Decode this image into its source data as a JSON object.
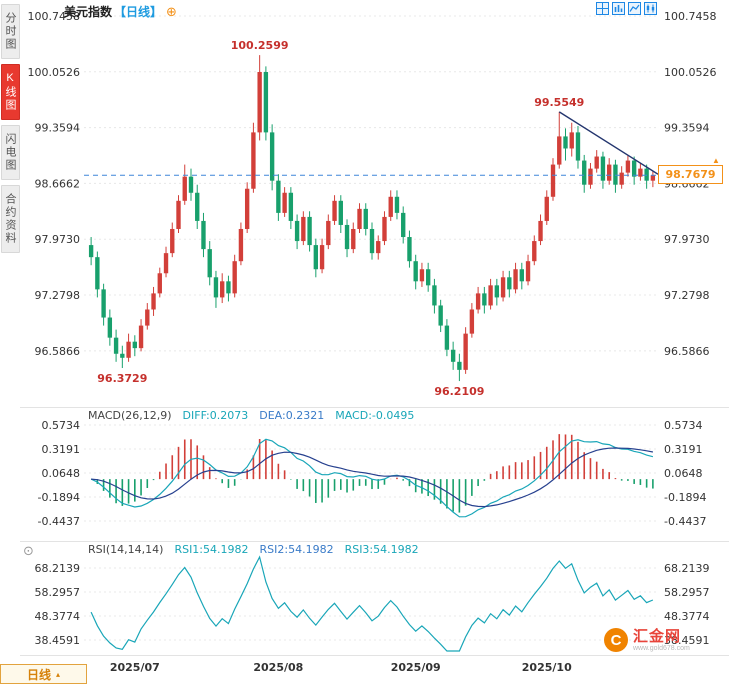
{
  "header": {
    "title": "美元指数",
    "period": "【日线】"
  },
  "sidebar": {
    "tabs": [
      {
        "label": "分时图",
        "active": false
      },
      {
        "label": "K线图",
        "active": true
      },
      {
        "label": "闪电图",
        "active": false
      },
      {
        "label": "合约资料",
        "active": false
      }
    ]
  },
  "main_chart": {
    "y_labels": [
      "100.7458",
      "100.0526",
      "99.3594",
      "98.6662",
      "97.9730",
      "97.2798",
      "96.5866"
    ],
    "current_price": "98.7679",
    "annotations": [
      {
        "text": "100.2599",
        "index": 27,
        "value": 100.2599,
        "pos": "above"
      },
      {
        "text": "96.3729",
        "index": 5,
        "value": 96.3729,
        "pos": "below"
      },
      {
        "text": "99.5549",
        "index": 75,
        "value": 99.5549,
        "pos": "above"
      },
      {
        "text": "96.2109",
        "index": 59,
        "value": 96.2109,
        "pos": "below"
      }
    ],
    "trendline": {
      "from_index": 75,
      "from_value": 99.5549,
      "to_value": 98.78
    }
  },
  "macd": {
    "title": "MACD(26,12,9)",
    "diff": "DIFF:0.2073",
    "dea": "DEA:0.2321",
    "macd": "MACD:-0.0495",
    "y_labels": [
      "0.5734",
      "0.3191",
      "0.0648",
      "-0.1894",
      "-0.4437"
    ]
  },
  "rsi": {
    "title": "RSI(14,14,14)",
    "rsi1": "RSI1:54.1982",
    "rsi2": "RSI2:54.1982",
    "rsi3": "RSI3:54.1982",
    "y_labels": [
      "68.2139",
      "58.2957",
      "48.3774",
      "38.4591"
    ]
  },
  "bottom": {
    "period_tab": "日线",
    "x_labels": [
      {
        "text": "2025/07",
        "index": 7.5
      },
      {
        "text": "2025/08",
        "index": 30.5
      },
      {
        "text": "2025/09",
        "index": 52.5
      },
      {
        "text": "2025/10",
        "index": 73.5
      }
    ]
  },
  "watermark": {
    "name": "汇金网",
    "site": "www.gold678.com",
    "logo_letter": "C"
  },
  "colors": {
    "up": "#d23f39",
    "down": "#18a06c",
    "diff_line": "#19a6b8",
    "dea_line": "#27418f",
    "rsi_line": "#19a6b8",
    "dashed_line": "#3f86d9",
    "trend": "#23356e",
    "annotation": "#c5302c",
    "price_box": "#f39119",
    "accent_blue": "#1e88e5",
    "tab_active": "#e8392f",
    "period_orange": "#d6820a"
  },
  "chart_data": [
    {
      "type": "candlestick",
      "title": "美元指数 日线",
      "y_max": 100.7458,
      "y_ticks": [
        100.7458,
        100.0526,
        99.3594,
        98.6662,
        97.973,
        97.2798,
        96.5866
      ],
      "x_tick_labels": [
        "2025/07",
        "2025/08",
        "2025/09",
        "2025/10"
      ],
      "key_points": {
        "aug_high": 100.2599,
        "jul_low": 96.3729,
        "oct_high": 99.5549,
        "sep_low": 96.2109,
        "last_close": 98.7679
      },
      "ohlc": [
        [
          97.9,
          98.0,
          97.65,
          97.75
        ],
        [
          97.75,
          97.82,
          97.25,
          97.35
        ],
        [
          97.35,
          97.42,
          96.9,
          97.0
        ],
        [
          97.0,
          97.1,
          96.65,
          96.75
        ],
        [
          96.75,
          96.85,
          96.45,
          96.55
        ],
        [
          96.55,
          96.65,
          96.3729,
          96.5
        ],
        [
          96.5,
          96.8,
          96.45,
          96.7
        ],
        [
          96.7,
          96.78,
          96.52,
          96.62
        ],
        [
          96.62,
          96.98,
          96.58,
          96.9
        ],
        [
          96.9,
          97.18,
          96.85,
          97.1
        ],
        [
          97.1,
          97.38,
          97.02,
          97.3
        ],
        [
          97.3,
          97.62,
          97.25,
          97.55
        ],
        [
          97.55,
          97.88,
          97.5,
          97.8
        ],
        [
          97.8,
          98.18,
          97.75,
          98.1
        ],
        [
          98.1,
          98.52,
          98.05,
          98.45
        ],
        [
          98.45,
          98.9,
          98.4,
          98.75
        ],
        [
          98.75,
          98.85,
          98.45,
          98.55
        ],
        [
          98.55,
          98.65,
          98.1,
          98.2
        ],
        [
          98.2,
          98.3,
          97.75,
          97.85
        ],
        [
          97.85,
          97.95,
          97.4,
          97.5
        ],
        [
          97.5,
          97.58,
          97.12,
          97.25
        ],
        [
          97.25,
          97.55,
          97.18,
          97.45
        ],
        [
          97.45,
          97.52,
          97.2,
          97.3
        ],
        [
          97.3,
          97.78,
          97.25,
          97.7
        ],
        [
          97.7,
          98.18,
          97.65,
          98.1
        ],
        [
          98.1,
          98.68,
          98.05,
          98.6
        ],
        [
          98.6,
          99.42,
          98.55,
          99.3
        ],
        [
          99.3,
          100.2599,
          99.2,
          100.05
        ],
        [
          100.05,
          100.12,
          99.2,
          99.3
        ],
        [
          99.3,
          99.4,
          98.58,
          98.7
        ],
        [
          98.7,
          98.78,
          98.2,
          98.3
        ],
        [
          98.3,
          98.62,
          98.25,
          98.55
        ],
        [
          98.55,
          98.62,
          98.1,
          98.2
        ],
        [
          98.2,
          98.28,
          97.85,
          97.95
        ],
        [
          97.95,
          98.32,
          97.9,
          98.25
        ],
        [
          98.25,
          98.32,
          97.82,
          97.9
        ],
        [
          97.9,
          97.98,
          97.5,
          97.6
        ],
        [
          97.6,
          97.98,
          97.55,
          97.9
        ],
        [
          97.9,
          98.28,
          97.85,
          98.2
        ],
        [
          98.2,
          98.52,
          98.15,
          98.45
        ],
        [
          98.45,
          98.52,
          98.05,
          98.15
        ],
        [
          98.15,
          98.22,
          97.75,
          97.85
        ],
        [
          97.85,
          98.18,
          97.8,
          98.1
        ],
        [
          98.1,
          98.42,
          98.05,
          98.35
        ],
        [
          98.35,
          98.42,
          98.02,
          98.1
        ],
        [
          98.1,
          98.18,
          97.72,
          97.8
        ],
        [
          97.8,
          98.02,
          97.72,
          97.95
        ],
        [
          97.95,
          98.32,
          97.9,
          98.25
        ],
        [
          98.25,
          98.58,
          98.2,
          98.5
        ],
        [
          98.5,
          98.58,
          98.22,
          98.3
        ],
        [
          98.3,
          98.38,
          97.92,
          98.0
        ],
        [
          98.0,
          98.08,
          97.62,
          97.7
        ],
        [
          97.7,
          97.78,
          97.35,
          97.45
        ],
        [
          97.45,
          97.68,
          97.38,
          97.6
        ],
        [
          97.6,
          97.68,
          97.32,
          97.4
        ],
        [
          97.4,
          97.48,
          97.05,
          97.15
        ],
        [
          97.15,
          97.22,
          96.82,
          96.9
        ],
        [
          96.9,
          96.98,
          96.52,
          96.6
        ],
        [
          96.6,
          96.7,
          96.35,
          96.45
        ],
        [
          96.45,
          96.55,
          96.2109,
          96.35
        ],
        [
          96.35,
          96.88,
          96.3,
          96.8
        ],
        [
          96.8,
          97.18,
          96.75,
          97.1
        ],
        [
          97.1,
          97.38,
          97.05,
          97.3
        ],
        [
          97.3,
          97.38,
          97.05,
          97.15
        ],
        [
          97.15,
          97.48,
          97.1,
          97.4
        ],
        [
          97.4,
          97.48,
          97.15,
          97.25
        ],
        [
          97.25,
          97.58,
          97.2,
          97.5
        ],
        [
          97.5,
          97.58,
          97.25,
          97.35
        ],
        [
          97.35,
          97.68,
          97.3,
          97.6
        ],
        [
          97.6,
          97.68,
          97.35,
          97.45
        ],
        [
          97.45,
          97.78,
          97.4,
          97.7
        ],
        [
          97.7,
          98.02,
          97.65,
          97.95
        ],
        [
          97.95,
          98.28,
          97.9,
          98.2
        ],
        [
          98.2,
          98.58,
          98.15,
          98.5
        ],
        [
          98.5,
          98.98,
          98.45,
          98.9
        ],
        [
          98.9,
          99.5549,
          98.85,
          99.25
        ],
        [
          99.25,
          99.35,
          98.95,
          99.1
        ],
        [
          99.1,
          99.42,
          99.0,
          99.3
        ],
        [
          99.3,
          99.38,
          98.85,
          98.95
        ],
        [
          98.95,
          99.02,
          98.55,
          98.65
        ],
        [
          98.65,
          98.92,
          98.6,
          98.85
        ],
        [
          98.85,
          99.08,
          98.8,
          99.0
        ],
        [
          99.0,
          99.06,
          98.6,
          98.7
        ],
        [
          98.7,
          98.98,
          98.65,
          98.9
        ],
        [
          98.9,
          98.96,
          98.55,
          98.65
        ],
        [
          98.65,
          98.88,
          98.6,
          98.8
        ],
        [
          98.8,
          99.02,
          98.75,
          98.95
        ],
        [
          98.95,
          99.0,
          98.65,
          98.75
        ],
        [
          98.75,
          98.92,
          98.7,
          98.85
        ],
        [
          98.85,
          98.9,
          98.6,
          98.7
        ],
        [
          98.7,
          98.82,
          98.62,
          98.7679
        ]
      ]
    },
    {
      "type": "macd",
      "params": [
        26,
        12,
        9
      ],
      "diff": 0.2073,
      "dea": 0.2321,
      "macd": -0.0495,
      "y_ticks": [
        0.5734,
        0.3191,
        0.0648,
        -0.1894,
        -0.4437
      ]
    },
    {
      "type": "rsi",
      "params": [
        14,
        14,
        14
      ],
      "rsi1": 54.1982,
      "rsi2": 54.1982,
      "rsi3": 54.1982,
      "y_ticks": [
        68.2139,
        58.2957,
        48.3774,
        38.4591
      ]
    }
  ]
}
